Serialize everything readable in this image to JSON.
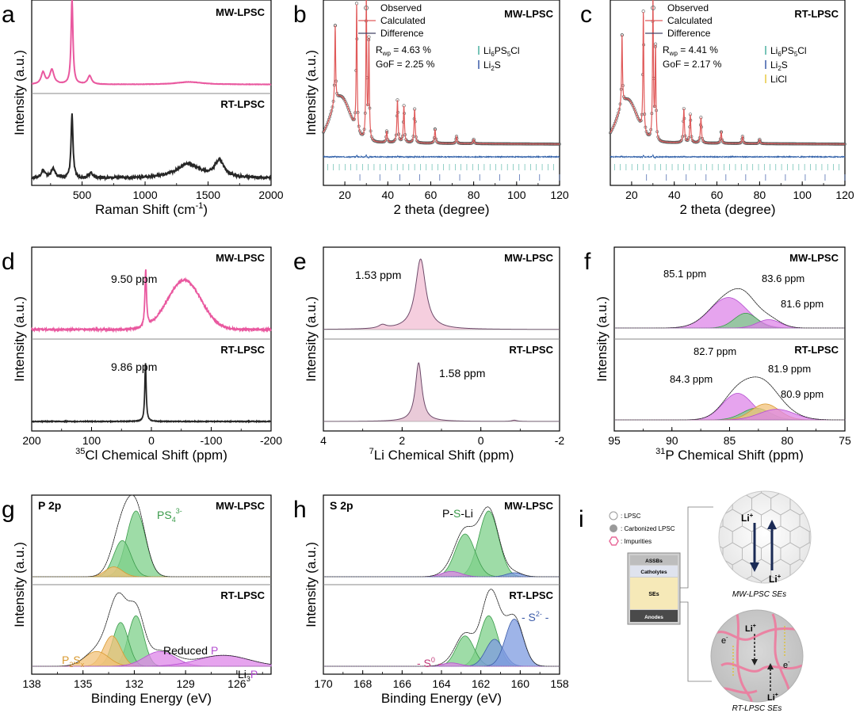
{
  "colors": {
    "mw": "#e9589f",
    "rt": "#262626",
    "fitRed": "#e05a5a",
    "diff": "#2f5fa8",
    "green": "#3a9a4a",
    "orange": "#e0a030",
    "purple": "#b44fd0",
    "blue": "#3b5ba8",
    "teal": "#4ab0a0"
  },
  "labels": {
    "mw": "MW-LPSC",
    "rt": "RT-LPSC"
  },
  "chart_data": [
    {
      "id": "a",
      "letter": "a",
      "type": "line",
      "xlabel": "Raman Shift (cm",
      "xlabel_sup": "-1",
      "xlabel_end": ")",
      "ylabel": "Intensity (a.u.)",
      "xlim": [
        100,
        2000
      ],
      "xticks": [
        500,
        1000,
        1500,
        2000
      ],
      "series": [
        {
          "name": "MW-LPSC",
          "baseline": 0.05,
          "noise": 0.004,
          "peaks": [
            [
              190,
              0.14,
              18
            ],
            [
              260,
              0.17,
              20
            ],
            [
              420,
              1.0,
              9
            ],
            [
              560,
              0.1,
              18
            ],
            [
              1350,
              0.03,
              120
            ]
          ]
        },
        {
          "name": "RT-LPSC",
          "baseline": 0.05,
          "noise": 0.04,
          "peaks": [
            [
              190,
              0.12,
              18
            ],
            [
              270,
              0.14,
              20
            ],
            [
              420,
              1.0,
              9
            ],
            [
              570,
              0.08,
              18
            ],
            [
              1340,
              0.22,
              110
            ],
            [
              1590,
              0.26,
              45
            ]
          ]
        }
      ]
    },
    {
      "id": "b",
      "letter": "b",
      "type": "line",
      "xlabel": "2 theta (degree)",
      "ylabel": "Intensity (a.u.)",
      "xlim": [
        10,
        120
      ],
      "xticks": [
        20,
        40,
        60,
        80,
        100,
        120
      ],
      "sample": "MW-LPSC",
      "legend": [
        "Observed",
        "Calculated",
        "Difference"
      ],
      "rwp": "4.63 %",
      "gof": "2.25 %",
      "phases": [
        {
          "pre": "Li",
          "s1": "6",
          "mid": "PS",
          "s2": "5",
          "post": "Cl"
        },
        {
          "pre": "Li",
          "s1": "2",
          "mid": "S",
          "s2": "",
          "post": ""
        }
      ],
      "hump": [
        18,
        0.32,
        4.5
      ],
      "peaks": [
        [
          15.5,
          0.55,
          0.25
        ],
        [
          25.5,
          0.9,
          0.25
        ],
        [
          30,
          1.0,
          0.25
        ],
        [
          31.2,
          0.7,
          0.25
        ],
        [
          39.5,
          0.08,
          0.3
        ],
        [
          44.5,
          0.3,
          0.3
        ],
        [
          47.5,
          0.26,
          0.3
        ],
        [
          52.5,
          0.24,
          0.3
        ],
        [
          62,
          0.1,
          0.3
        ],
        [
          72,
          0.05,
          0.3
        ],
        [
          80,
          0.03,
          0.3
        ]
      ]
    },
    {
      "id": "c",
      "letter": "c",
      "type": "line",
      "xlabel": "2 theta (degree)",
      "ylabel": "",
      "xlim": [
        10,
        120
      ],
      "xticks": [
        20,
        40,
        60,
        80,
        100,
        120
      ],
      "sample": "RT-LPSC",
      "legend": [
        "Observed",
        "Calculated",
        "Difference"
      ],
      "rwp": "4.41 %",
      "gof": "2.17 %",
      "phases": [
        {
          "pre": "Li",
          "s1": "6",
          "mid": "PS",
          "s2": "5",
          "post": "Cl"
        },
        {
          "pre": "Li",
          "s1": "2",
          "mid": "S",
          "s2": "",
          "post": ""
        },
        {
          "pre": "LiCl",
          "s1": "",
          "mid": "",
          "s2": "",
          "post": ""
        }
      ],
      "hump": [
        18,
        0.3,
        4.5
      ],
      "peaks": [
        [
          15.5,
          0.5,
          0.25
        ],
        [
          25.5,
          0.85,
          0.25
        ],
        [
          30,
          1.0,
          0.25
        ],
        [
          31.2,
          0.65,
          0.25
        ],
        [
          44.5,
          0.24,
          0.3
        ],
        [
          47.5,
          0.2,
          0.3
        ],
        [
          52.5,
          0.18,
          0.3
        ],
        [
          62,
          0.08,
          0.3
        ],
        [
          72,
          0.05,
          0.3
        ],
        [
          80,
          0.03,
          0.3
        ]
      ]
    },
    {
      "id": "d",
      "letter": "d",
      "type": "line",
      "xlabel_sup": "35",
      "xlabel": "Cl Chemical Shift (ppm)",
      "ylabel": "Intensity (a.u.)",
      "xlim": [
        200,
        -200
      ],
      "xticks": [
        200,
        100,
        0,
        -100,
        -200
      ],
      "series": [
        {
          "name": "MW-LPSC",
          "annotation": "9.50 ppm",
          "noise": 0.025,
          "peaks": [
            [
              9.5,
              0.8,
              1.6
            ],
            [
              -55,
              0.7,
              28
            ]
          ]
        },
        {
          "name": "RT-LPSC",
          "annotation": "9.86 ppm",
          "noise": 0.012,
          "peaks": [
            [
              9.86,
              1.0,
              1.4
            ]
          ]
        }
      ]
    },
    {
      "id": "e",
      "letter": "e",
      "type": "line",
      "xlabel_sup": "7",
      "xlabel": "Li Chemical Shift (ppm)",
      "ylabel": "Intensity (a.u.)",
      "xlim": [
        4,
        -2
      ],
      "xticks": [
        4,
        2,
        0,
        -2
      ],
      "series": [
        {
          "name": "MW-LPSC",
          "annotation": "1.53 ppm",
          "peaks": [
            [
              1.53,
              1.0,
              0.16
            ],
            [
              2.5,
              0.05,
              0.12
            ]
          ]
        },
        {
          "name": "RT-LPSC",
          "annotation": "1.58 ppm",
          "peaks": [
            [
              1.58,
              1.0,
              0.1
            ],
            [
              -0.85,
              0.02,
              0.08
            ]
          ]
        }
      ]
    },
    {
      "id": "f",
      "letter": "f",
      "type": "line",
      "xlabel_sup": "31",
      "xlabel": "P Chemical Shift (ppm)",
      "ylabel": "Intensity (a.u.)",
      "xlim": [
        95,
        75
      ],
      "xticks": [
        95,
        90,
        85,
        80,
        75
      ],
      "series": [
        {
          "name": "MW-LPSC",
          "components": [
            [
              85.1,
              0.62,
              1.6,
              "purple",
              "85.1 ppm"
            ],
            [
              83.6,
              0.3,
              1.0,
              "green",
              "83.6 ppm"
            ],
            [
              81.6,
              0.17,
              1.0,
              "purple",
              "81.6 ppm"
            ]
          ]
        },
        {
          "name": "RT-LPSC",
          "components": [
            [
              84.3,
              0.5,
              1.3,
              "purple",
              "84.3 ppm"
            ],
            [
              82.7,
              0.22,
              1.2,
              "green",
              "82.7 ppm"
            ],
            [
              81.9,
              0.3,
              1.2,
              "orange",
              "81.9 ppm"
            ],
            [
              80.9,
              0.2,
              1.5,
              "purple",
              "80.9 ppm"
            ]
          ]
        }
      ]
    },
    {
      "id": "g",
      "letter": "g",
      "type": "line",
      "corner": "P 2p",
      "xlabel": "Binding Energy (eV)",
      "ylabel": "Intensity (a.u.)",
      "xlim": [
        138,
        124
      ],
      "xticks": [
        138,
        135,
        132,
        129,
        126
      ],
      "series": [
        {
          "name": "MW-LPSC",
          "components": [
            [
              131.9,
              1.0,
              0.55,
              "green"
            ],
            [
              132.7,
              0.55,
              0.5,
              "green"
            ],
            [
              133.2,
              0.15,
              0.5,
              "orange"
            ]
          ]
        },
        {
          "name": "RT-LPSC",
          "components": [
            [
              131.9,
              0.75,
              0.45,
              "green"
            ],
            [
              132.8,
              0.65,
              0.45,
              "green"
            ],
            [
              133.3,
              0.45,
              0.5,
              "orange"
            ],
            [
              134.2,
              0.22,
              0.7,
              "orange"
            ],
            [
              130.5,
              0.22,
              0.9,
              "purple"
            ],
            [
              126.8,
              0.16,
              1.5,
              "purple"
            ]
          ]
        }
      ],
      "ann": {
        "ps4": {
          "main": "PS",
          "sub": "4",
          "sup": "3-"
        },
        "p2sx": {
          "a": "P",
          "as": "2",
          "b": "S",
          "bs": "x"
        },
        "reduced": {
          "a": "Reduced ",
          "b": "P"
        },
        "li3p": {
          "a": "Li",
          "as": "3",
          "b": "P"
        }
      }
    },
    {
      "id": "h",
      "letter": "h",
      "type": "line",
      "corner": "S 2p",
      "xlabel": "Binding Energy (eV)",
      "ylabel": "Intensity (a.u.)",
      "xlim": [
        170,
        158
      ],
      "xticks": [
        170,
        168,
        166,
        164,
        162,
        160,
        158
      ],
      "series": [
        {
          "name": "MW-LPSC",
          "components": [
            [
              161.6,
              1.0,
              0.5,
              "green"
            ],
            [
              162.8,
              0.65,
              0.5,
              "green"
            ],
            [
              163.5,
              0.08,
              0.5,
              "purple"
            ],
            [
              160.3,
              0.06,
              0.4,
              "blue"
            ]
          ]
        },
        {
          "name": "RT-LPSC",
          "components": [
            [
              161.6,
              0.75,
              0.45,
              "green"
            ],
            [
              162.8,
              0.45,
              0.45,
              "green"
            ],
            [
              161.3,
              0.4,
              0.45,
              "blue"
            ],
            [
              160.3,
              0.7,
              0.45,
              "blue"
            ],
            [
              163.5,
              0.05,
              0.45,
              "purple"
            ]
          ]
        }
      ],
      "ann": {
        "psli": {
          "a": "P-",
          "b": "S",
          "c": "-Li"
        },
        "s0": {
          "a": "- S",
          "sup": "0",
          "b": " -"
        },
        "s2": {
          "a": "- S",
          "sup": "2-",
          "b": " -"
        }
      }
    }
  ],
  "schematic": {
    "letter": "i",
    "legend": [
      ": LPSC",
      ": Carbonized LPSC",
      ": Impurities"
    ],
    "stack": [
      "ASSBs",
      "Catholytes",
      "SEs",
      "Anodes"
    ],
    "ions": {
      "base": "Li",
      "sup": "+"
    },
    "electron": {
      "base": "e",
      "sup": "-"
    },
    "mw_caption": "MW-LPSC SEs",
    "rt_caption": "RT-LPSC SEs"
  }
}
